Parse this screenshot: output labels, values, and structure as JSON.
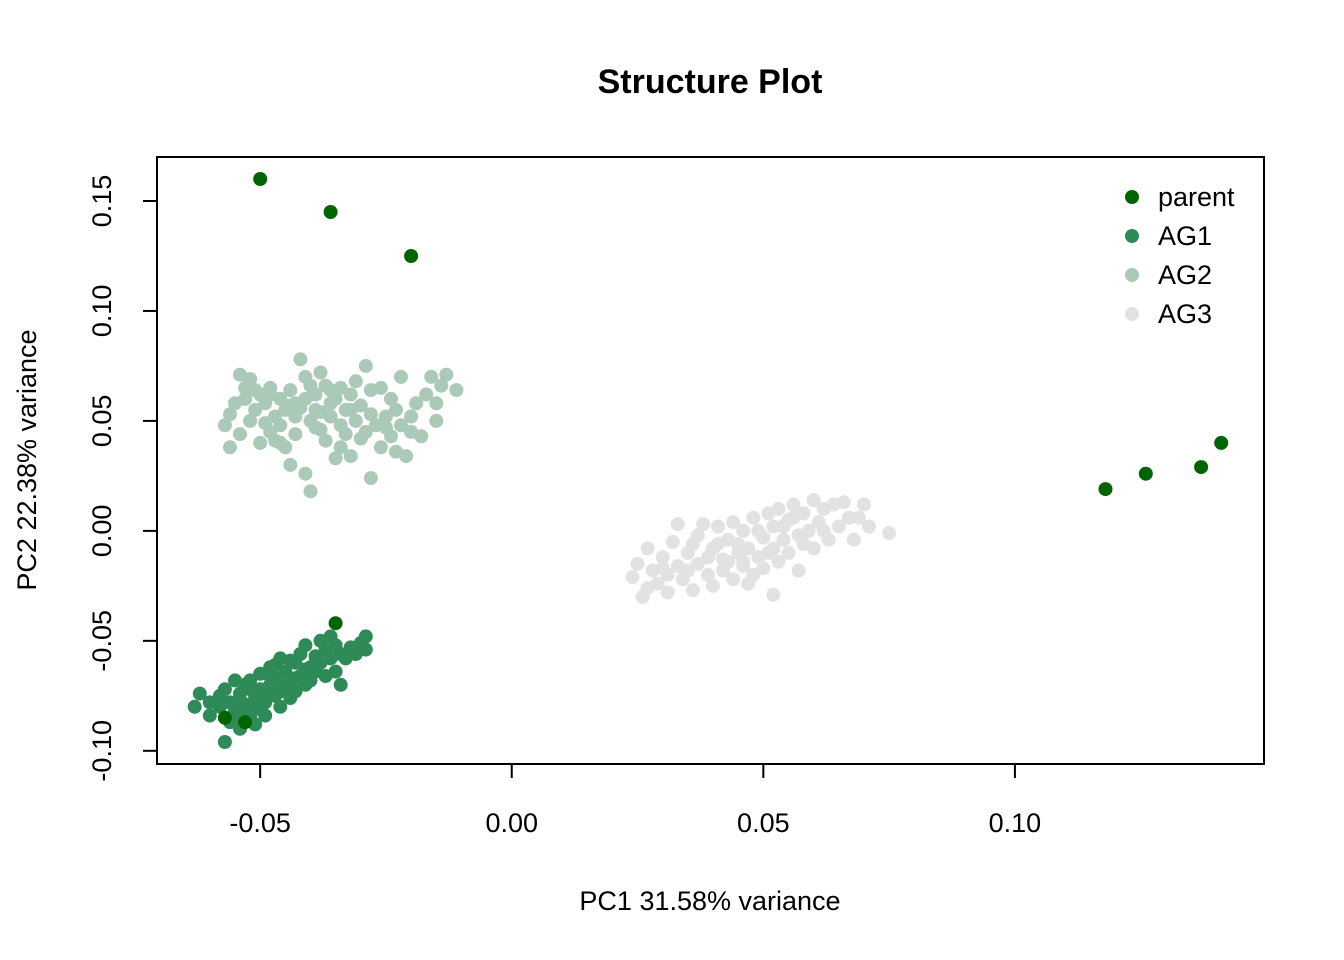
{
  "chart_data": {
    "type": "scatter",
    "title": "Structure Plot",
    "xlabel": "PC1  31.58% variance",
    "ylabel": "PC2  22.38% variance",
    "xlim": [
      -0.0705,
      0.1495
    ],
    "ylim": [
      -0.106,
      0.17
    ],
    "x_ticks": [
      -0.05,
      0.0,
      0.05,
      0.1
    ],
    "x_tick_labels": [
      "-0.05",
      "0.00",
      "0.05",
      "0.10"
    ],
    "y_ticks": [
      -0.1,
      -0.05,
      0.0,
      0.05,
      0.1,
      0.15
    ],
    "y_tick_labels": [
      "-0.10",
      "-0.05",
      "0.00",
      "0.05",
      "0.10",
      "0.15"
    ],
    "grid": false,
    "legend_position": "top-right",
    "series": [
      {
        "name": "parent",
        "color": "#006400",
        "points": [
          [
            -0.05,
            0.16
          ],
          [
            -0.036,
            0.145
          ],
          [
            -0.02,
            0.125
          ],
          [
            0.118,
            0.019
          ],
          [
            0.126,
            0.026
          ],
          [
            0.137,
            0.029
          ],
          [
            0.141,
            0.04
          ],
          [
            -0.035,
            -0.042
          ],
          [
            -0.057,
            -0.085
          ],
          [
            -0.053,
            -0.087
          ]
        ]
      },
      {
        "name": "AG1",
        "color": "#2E8B57",
        "points": [
          [
            -0.063,
            -0.08
          ],
          [
            -0.062,
            -0.074
          ],
          [
            -0.06,
            -0.078
          ],
          [
            -0.06,
            -0.084
          ],
          [
            -0.058,
            -0.08
          ],
          [
            -0.057,
            -0.096
          ],
          [
            -0.057,
            -0.072
          ],
          [
            -0.056,
            -0.087
          ],
          [
            -0.056,
            -0.078
          ],
          [
            -0.055,
            -0.068
          ],
          [
            -0.055,
            -0.082
          ],
          [
            -0.054,
            -0.09
          ],
          [
            -0.054,
            -0.074
          ],
          [
            -0.053,
            -0.07
          ],
          [
            -0.053,
            -0.079
          ],
          [
            -0.052,
            -0.085
          ],
          [
            -0.052,
            -0.068
          ],
          [
            -0.051,
            -0.076
          ],
          [
            -0.051,
            -0.081
          ],
          [
            -0.05,
            -0.072
          ],
          [
            -0.05,
            -0.065
          ],
          [
            -0.049,
            -0.078
          ],
          [
            -0.049,
            -0.084
          ],
          [
            -0.048,
            -0.07
          ],
          [
            -0.048,
            -0.062
          ],
          [
            -0.047,
            -0.075
          ],
          [
            -0.047,
            -0.067
          ],
          [
            -0.046,
            -0.08
          ],
          [
            -0.046,
            -0.058
          ],
          [
            -0.045,
            -0.071
          ],
          [
            -0.045,
            -0.064
          ],
          [
            -0.044,
            -0.076
          ],
          [
            -0.044,
            -0.068
          ],
          [
            -0.043,
            -0.06
          ],
          [
            -0.043,
            -0.073
          ],
          [
            -0.042,
            -0.056
          ],
          [
            -0.042,
            -0.066
          ],
          [
            -0.041,
            -0.07
          ],
          [
            -0.041,
            -0.052
          ],
          [
            -0.04,
            -0.062
          ],
          [
            -0.04,
            -0.068
          ],
          [
            -0.039,
            -0.057
          ],
          [
            -0.039,
            -0.064
          ],
          [
            -0.038,
            -0.05
          ],
          [
            -0.038,
            -0.06
          ],
          [
            -0.037,
            -0.066
          ],
          [
            -0.037,
            -0.054
          ],
          [
            -0.036,
            -0.058
          ],
          [
            -0.036,
            -0.048
          ],
          [
            -0.035,
            -0.064
          ],
          [
            -0.035,
            -0.052
          ],
          [
            -0.034,
            -0.056
          ],
          [
            -0.034,
            -0.07
          ],
          [
            -0.033,
            -0.058
          ],
          [
            -0.032,
            -0.053
          ],
          [
            -0.031,
            -0.056
          ],
          [
            -0.03,
            -0.051
          ],
          [
            -0.029,
            -0.048
          ],
          [
            -0.029,
            -0.054
          ],
          [
            -0.055,
            -0.086
          ],
          [
            -0.053,
            -0.083
          ],
          [
            -0.051,
            -0.088
          ],
          [
            -0.049,
            -0.073
          ],
          [
            -0.047,
            -0.061
          ],
          [
            -0.045,
            -0.07
          ],
          [
            -0.043,
            -0.067
          ],
          [
            -0.041,
            -0.063
          ],
          [
            -0.039,
            -0.06
          ],
          [
            -0.046,
            -0.073
          ],
          [
            -0.05,
            -0.079
          ],
          [
            -0.054,
            -0.077
          ],
          [
            -0.058,
            -0.075
          ],
          [
            -0.044,
            -0.059
          ],
          [
            -0.048,
            -0.066
          ],
          [
            -0.052,
            -0.072
          ]
        ]
      },
      {
        "name": "AG2",
        "color": "#ABC9B7",
        "points": [
          [
            -0.057,
            0.048
          ],
          [
            -0.056,
            0.038
          ],
          [
            -0.056,
            0.053
          ],
          [
            -0.055,
            0.058
          ],
          [
            -0.054,
            0.044
          ],
          [
            -0.054,
            0.071
          ],
          [
            -0.053,
            0.065
          ],
          [
            -0.052,
            0.05
          ],
          [
            -0.052,
            0.069
          ],
          [
            -0.051,
            0.055
          ],
          [
            -0.051,
            0.064
          ],
          [
            -0.05,
            0.04
          ],
          [
            -0.05,
            0.062
          ],
          [
            -0.049,
            0.049
          ],
          [
            -0.049,
            0.058
          ],
          [
            -0.048,
            0.065
          ],
          [
            -0.048,
            0.045
          ],
          [
            -0.047,
            0.052
          ],
          [
            -0.047,
            0.041
          ],
          [
            -0.046,
            0.06
          ],
          [
            -0.046,
            0.048
          ],
          [
            -0.045,
            0.055
          ],
          [
            -0.045,
            0.038
          ],
          [
            -0.044,
            0.064
          ],
          [
            -0.044,
            0.03
          ],
          [
            -0.043,
            0.052
          ],
          [
            -0.043,
            0.044
          ],
          [
            -0.042,
            0.078
          ],
          [
            -0.042,
            0.056
          ],
          [
            -0.041,
            0.06
          ],
          [
            -0.041,
            0.07
          ],
          [
            -0.041,
            0.026
          ],
          [
            -0.04,
            0.05
          ],
          [
            -0.04,
            0.018
          ],
          [
            -0.039,
            0.062
          ],
          [
            -0.039,
            0.055
          ],
          [
            -0.038,
            0.072
          ],
          [
            -0.038,
            0.046
          ],
          [
            -0.037,
            0.066
          ],
          [
            -0.037,
            0.041
          ],
          [
            -0.036,
            0.058
          ],
          [
            -0.036,
            0.052
          ],
          [
            -0.035,
            0.06
          ],
          [
            -0.035,
            0.033
          ],
          [
            -0.034,
            0.048
          ],
          [
            -0.034,
            0.065
          ],
          [
            -0.033,
            0.044
          ],
          [
            -0.033,
            0.055
          ],
          [
            -0.032,
            0.034
          ],
          [
            -0.032,
            0.062
          ],
          [
            -0.031,
            0.05
          ],
          [
            -0.03,
            0.042
          ],
          [
            -0.03,
            0.057
          ],
          [
            -0.029,
            0.075
          ],
          [
            -0.029,
            0.045
          ],
          [
            -0.028,
            0.053
          ],
          [
            -0.028,
            0.024
          ],
          [
            -0.027,
            0.048
          ],
          [
            -0.026,
            0.065
          ],
          [
            -0.026,
            0.038
          ],
          [
            -0.025,
            0.052
          ],
          [
            -0.024,
            0.043
          ],
          [
            -0.024,
            0.06
          ],
          [
            -0.023,
            0.055
          ],
          [
            -0.022,
            0.048
          ],
          [
            -0.022,
            0.07
          ],
          [
            -0.021,
            0.034
          ],
          [
            -0.02,
            0.045
          ],
          [
            -0.019,
            0.058
          ],
          [
            -0.018,
            0.043
          ],
          [
            -0.017,
            0.062
          ],
          [
            -0.016,
            0.07
          ],
          [
            -0.015,
            0.058
          ],
          [
            -0.015,
            0.05
          ],
          [
            -0.014,
            0.066
          ],
          [
            -0.013,
            0.071
          ],
          [
            -0.011,
            0.064
          ],
          [
            -0.048,
            0.062
          ],
          [
            -0.046,
            0.04
          ],
          [
            -0.043,
            0.058
          ],
          [
            -0.04,
            0.066
          ],
          [
            -0.038,
            0.054
          ],
          [
            -0.036,
            0.064
          ],
          [
            -0.034,
            0.038
          ],
          [
            -0.031,
            0.068
          ],
          [
            -0.028,
            0.064
          ],
          [
            -0.025,
            0.047
          ],
          [
            -0.023,
            0.036
          ],
          [
            -0.02,
            0.052
          ],
          [
            -0.053,
            0.06
          ],
          [
            -0.044,
            0.057
          ],
          [
            -0.039,
            0.047
          ],
          [
            -0.032,
            0.055
          ]
        ]
      },
      {
        "name": "AG3",
        "color": "#E2E2E2",
        "points": [
          [
            0.024,
            -0.021
          ],
          [
            0.025,
            -0.015
          ],
          [
            0.026,
            -0.03
          ],
          [
            0.027,
            -0.008
          ],
          [
            0.028,
            -0.018
          ],
          [
            0.029,
            -0.024
          ],
          [
            0.03,
            -0.012
          ],
          [
            0.031,
            -0.028
          ],
          [
            0.032,
            -0.005
          ],
          [
            0.033,
            -0.016
          ],
          [
            0.033,
            0.003
          ],
          [
            0.034,
            -0.022
          ],
          [
            0.035,
            -0.01
          ],
          [
            0.036,
            -0.027
          ],
          [
            0.037,
            -0.002
          ],
          [
            0.037,
            -0.015
          ],
          [
            0.038,
            0.003
          ],
          [
            0.039,
            -0.02
          ],
          [
            0.04,
            -0.008
          ],
          [
            0.04,
            -0.025
          ],
          [
            0.041,
            0.002
          ],
          [
            0.042,
            -0.013
          ],
          [
            0.042,
            -0.018
          ],
          [
            0.043,
            -0.004
          ],
          [
            0.044,
            -0.022
          ],
          [
            0.044,
            0.004
          ],
          [
            0.045,
            -0.01
          ],
          [
            0.046,
            -0.016
          ],
          [
            0.046,
            0.0
          ],
          [
            0.047,
            -0.008
          ],
          [
            0.048,
            -0.02
          ],
          [
            0.048,
            0.006
          ],
          [
            0.049,
            -0.012
          ],
          [
            0.05,
            -0.003
          ],
          [
            0.05,
            -0.017
          ],
          [
            0.051,
            0.008
          ],
          [
            0.052,
            -0.008
          ],
          [
            0.052,
            0.002
          ],
          [
            0.053,
            -0.014
          ],
          [
            0.053,
            0.01
          ],
          [
            0.054,
            -0.004
          ],
          [
            0.055,
            0.005
          ],
          [
            0.055,
            -0.01
          ],
          [
            0.056,
            0.012
          ],
          [
            0.057,
            -0.002
          ],
          [
            0.057,
            -0.018
          ],
          [
            0.058,
            0.008
          ],
          [
            0.059,
            0.0
          ],
          [
            0.06,
            0.014
          ],
          [
            0.06,
            -0.008
          ],
          [
            0.061,
            0.004
          ],
          [
            0.062,
            0.01
          ],
          [
            0.063,
            -0.004
          ],
          [
            0.064,
            0.012
          ],
          [
            0.065,
            0.002
          ],
          [
            0.066,
            0.013
          ],
          [
            0.067,
            0.006
          ],
          [
            0.068,
            -0.004
          ],
          [
            0.069,
            0.006
          ],
          [
            0.07,
            0.012
          ],
          [
            0.071,
            0.002
          ],
          [
            0.075,
            -0.001
          ],
          [
            0.052,
            -0.029
          ],
          [
            0.047,
            -0.024
          ],
          [
            0.043,
            -0.014
          ],
          [
            0.039,
            -0.012
          ],
          [
            0.035,
            -0.018
          ],
          [
            0.031,
            -0.02
          ],
          [
            0.045,
            -0.006
          ],
          [
            0.049,
            0.0
          ],
          [
            0.054,
            0.002
          ],
          [
            0.058,
            -0.006
          ],
          [
            0.062,
            0.0
          ],
          [
            0.056,
            0.006
          ],
          [
            0.051,
            -0.01
          ],
          [
            0.046,
            -0.014
          ],
          [
            0.041,
            -0.006
          ],
          [
            0.036,
            -0.006
          ],
          [
            0.03,
            -0.017
          ],
          [
            0.027,
            -0.026
          ]
        ]
      }
    ]
  }
}
